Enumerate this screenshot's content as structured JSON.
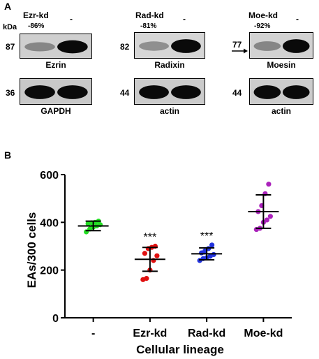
{
  "panel_a": {
    "letter": "A",
    "kda_label": "kDa",
    "columns": [
      {
        "kd_label": "Ezr-kd",
        "kd_percent": "-86%",
        "control_label": "-",
        "top_blot": {
          "mw": "87",
          "protein": "Ezrin",
          "band_left": 0.35,
          "band_right": 1.0
        },
        "bottom_blot": {
          "mw": "36",
          "protein": "GAPDH",
          "band_left": 1.0,
          "band_right": 1.0
        }
      },
      {
        "kd_label": "Rad-kd",
        "kd_percent": "-81%",
        "control_label": "-",
        "top_blot": {
          "mw": "82",
          "protein": "Radixin",
          "band_left": 0.3,
          "band_right": 1.0
        },
        "bottom_blot": {
          "mw": "44",
          "protein": "actin",
          "band_left": 1.0,
          "band_right": 1.0
        }
      },
      {
        "kd_label": "Moe-kd",
        "kd_percent": "-92%",
        "control_label": "-",
        "top_blot": {
          "mw": "77",
          "protein": "Moesin",
          "band_left": 0.35,
          "band_right": 1.0
        },
        "bottom_blot": {
          "mw": "44",
          "protein": "actin",
          "band_left": 1.0,
          "band_right": 1.0
        }
      }
    ]
  },
  "panel_b": {
    "letter": "B",
    "chart_data": {
      "type": "scatter",
      "ylabel": "EAs/300 cells",
      "xlabel": "Cellular lineage",
      "ylim": [
        0,
        600
      ],
      "yticks": [
        0,
        200,
        400,
        600
      ],
      "categories": [
        "-",
        "Ezr-kd",
        "Rad-kd",
        "Moe-kd"
      ],
      "series": [
        {
          "category": "-",
          "color": "#22dd22",
          "points": [
            360,
            372,
            380,
            385,
            390,
            395,
            398,
            400,
            405
          ],
          "mean": 385,
          "sd": 20,
          "annotation": ""
        },
        {
          "category": "Ezr-kd",
          "color": "#e01010",
          "points": [
            160,
            165,
            200,
            240,
            260,
            270,
            290,
            295,
            300
          ],
          "mean": 245,
          "sd": 50,
          "annotation": "***"
        },
        {
          "category": "Rad-kd",
          "color": "#2233dd",
          "points": [
            240,
            248,
            252,
            258,
            265,
            272,
            280,
            290,
            305
          ],
          "mean": 268,
          "sd": 25,
          "annotation": "***"
        },
        {
          "category": "Moe-kd",
          "color": "#aa22bb",
          "points": [
            370,
            375,
            400,
            410,
            425,
            445,
            470,
            520,
            560
          ],
          "mean": 445,
          "sd": 70,
          "annotation": ""
        }
      ]
    }
  }
}
